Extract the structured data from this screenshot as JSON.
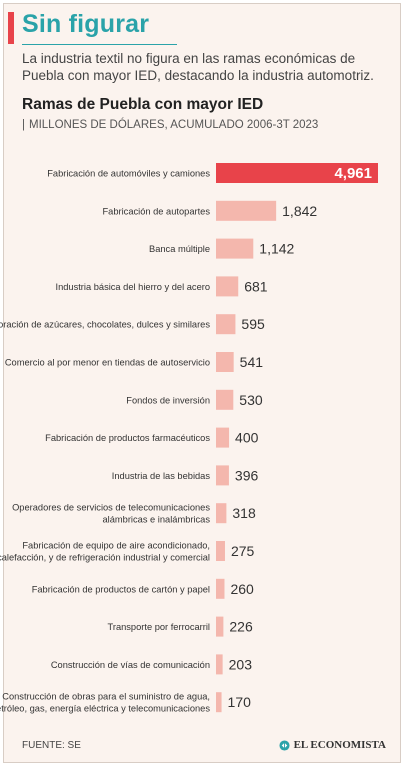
{
  "header": {
    "headline": "Sin figurar",
    "subtitle": "La industria textil no figura en las ramas económicas de Puebla con mayor IED, destacando la industria automotriz.",
    "chart_title": "Ramas de Puebla con mayor IED",
    "units": "MILLONES DE DÓLARES, ACUMULADO 2006-3T 2023"
  },
  "footer": {
    "source": "FUENTE: SE",
    "brand": "EL ECONOMISTA"
  },
  "colors": {
    "highlight": "#e8434a",
    "bar": "#f4b7ad",
    "headline": "#2aa3a9",
    "background": "#fbf3ee"
  },
  "chart_data": {
    "type": "bar",
    "orientation": "horizontal",
    "title": "Ramas de Puebla con mayor IED",
    "subtitle": "MILLONES DE DÓLARES, ACUMULADO 2006-3T 2023",
    "categories": [
      [
        "Fabricación de automóviles y camiones"
      ],
      [
        "Fabricación de autopartes"
      ],
      [
        "Banca múltiple"
      ],
      [
        "Industria básica del hierro y del acero"
      ],
      [
        "Elaboración de azúcares, chocolates, dulces y similares"
      ],
      [
        "Comercio al por menor en tiendas de autoservicio"
      ],
      [
        "Fondos de inversión"
      ],
      [
        "Fabricación de productos farmacéuticos"
      ],
      [
        "Industria de las bebidas"
      ],
      [
        "Operadores de servicios de telecomunicaciones",
        "alámbricas e inalámbricas"
      ],
      [
        "Fabricación de equipo de aire acondicionado,",
        "calefacción, y de refrigeración industrial y comercial"
      ],
      [
        "Fabricación de productos de cartón y papel"
      ],
      [
        "Transporte por ferrocarril"
      ],
      [
        "Construcción de vías de comunicación"
      ],
      [
        "Construcción de obras para el suministro de agua,",
        "petróleo, gas, energía eléctrica y telecomunicaciones"
      ]
    ],
    "values": [
      4961,
      1842,
      1142,
      681,
      595,
      541,
      530,
      400,
      396,
      318,
      275,
      260,
      226,
      203,
      170
    ],
    "value_labels": [
      "4,961",
      "1,842",
      "1,142",
      "681",
      "595",
      "541",
      "530",
      "400",
      "396",
      "318",
      "275",
      "260",
      "226",
      "203",
      "170"
    ],
    "highlight_index": 0,
    "xlim": [
      0,
      4961
    ],
    "grid": false,
    "legend": "none"
  }
}
